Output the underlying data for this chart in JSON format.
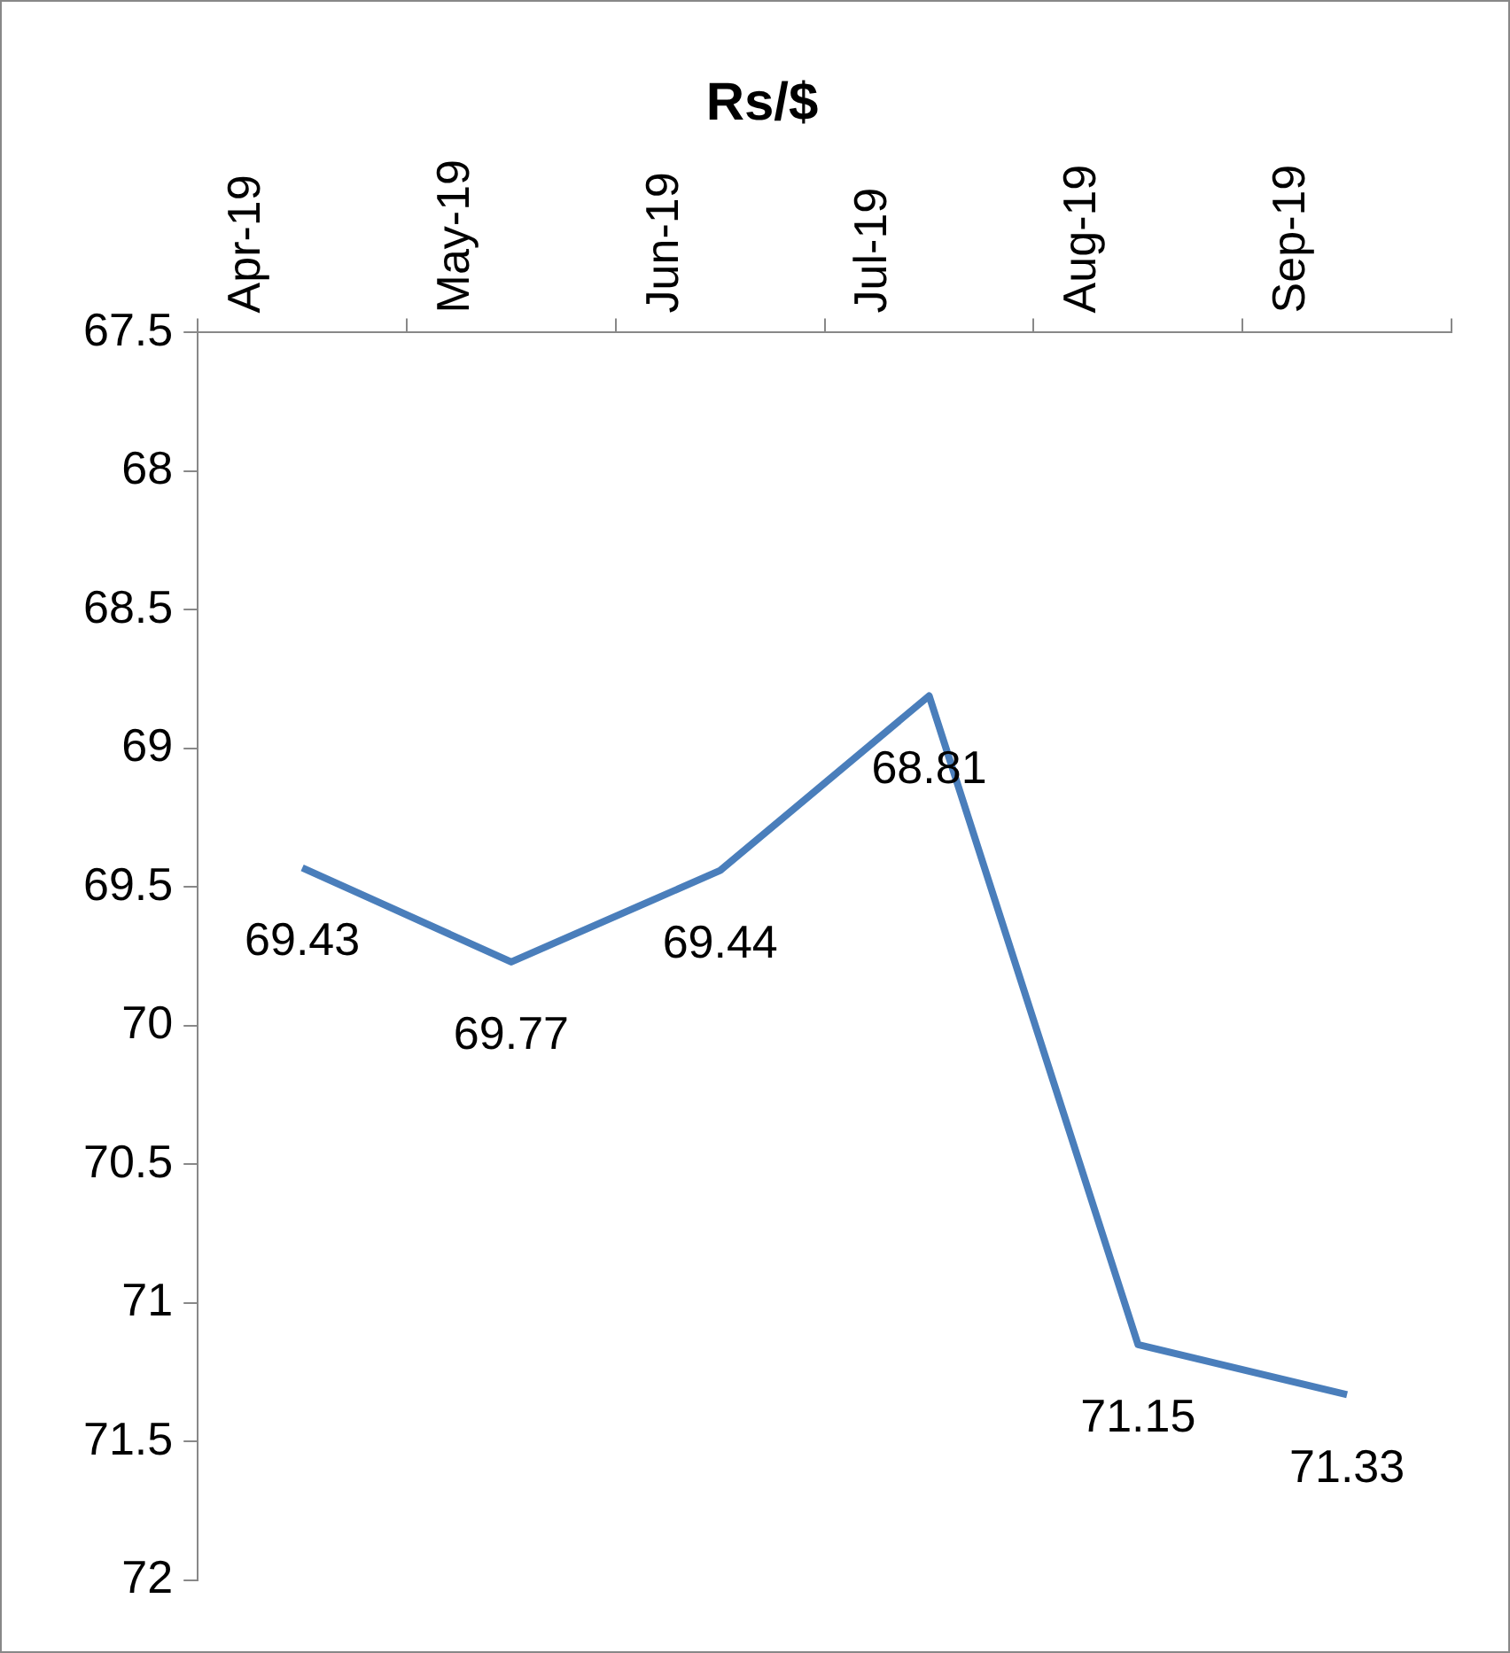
{
  "chart_data": {
    "type": "line",
    "title": "Rs/$",
    "categories": [
      "Apr-19",
      "May-19",
      "Jun-19",
      "Jul-19",
      "Aug-19",
      "Sep-19"
    ],
    "series": [
      {
        "color": "#4a7ebb",
        "values": [
          69.43,
          69.77,
          69.44,
          68.81,
          71.15,
          71.33
        ]
      }
    ],
    "ylim": [
      72,
      67.5
    ],
    "yticks": [
      67.5,
      68,
      68.5,
      69,
      69.5,
      70,
      70.5,
      71,
      71.5,
      72
    ],
    "grid": false,
    "legend": false,
    "marker": "none",
    "line_style": "solid",
    "data_labels": true
  }
}
